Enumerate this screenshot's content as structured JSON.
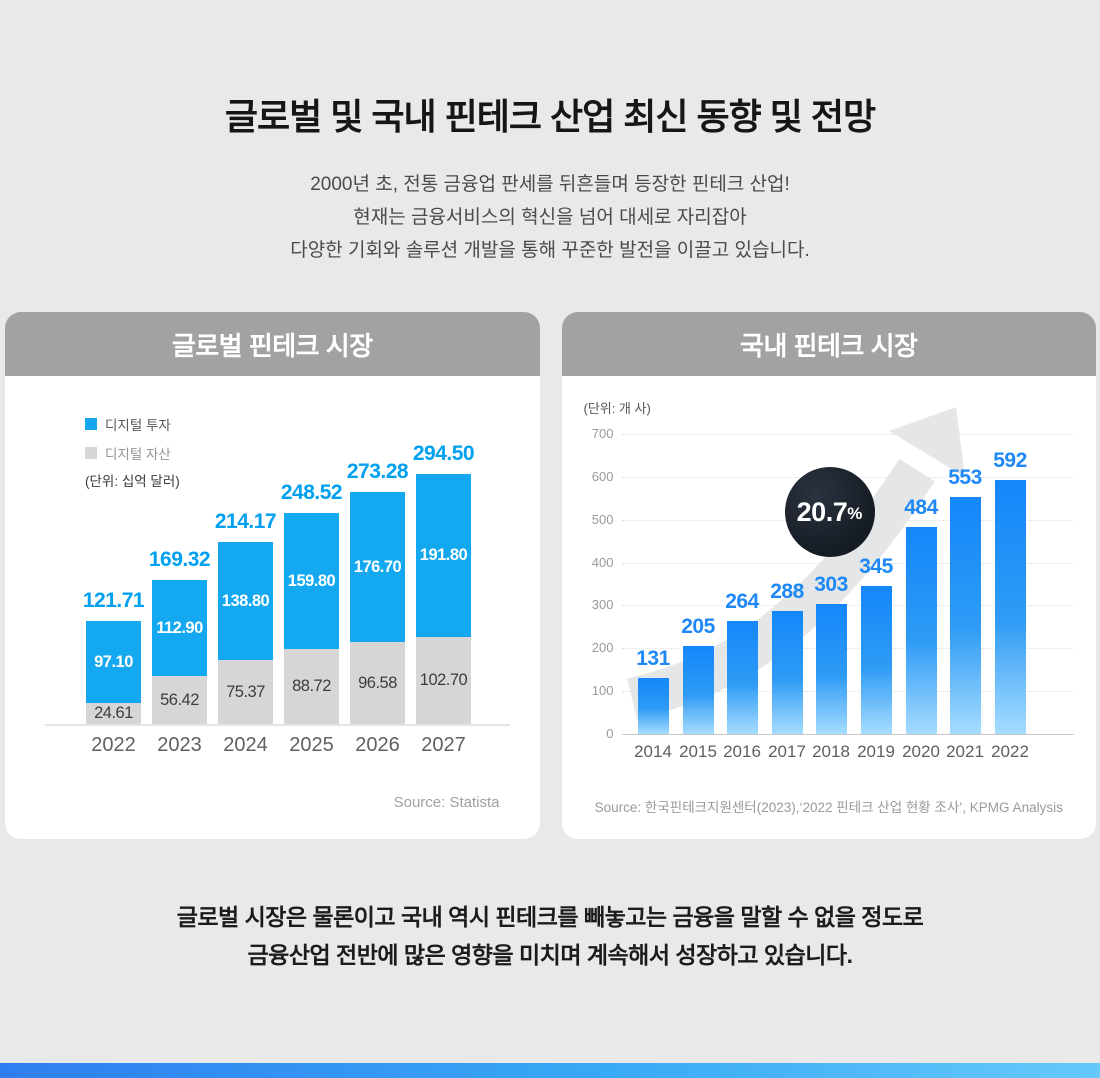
{
  "page": {
    "title": "글로벌 및 국내 핀테크 산업 최신 동향 및 전망",
    "subtitle_lines": [
      "2000년 초, 전통 금융업 판세를 뒤흔들며 등장한 핀테크 산업!",
      "현재는 금융서비스의 혁신을 넘어 대세로 자리잡아",
      "다양한 기회와 솔루션 개발을 통해 꾸준한 발전을 이끌고 있습니다."
    ],
    "footer_lines": [
      "글로벌 시장은 물론이고 국내 역시 핀테크를 빼놓고는 금융을 말할 수 없을 정도로",
      "금융산업 전반에 많은 영향을 미치며 계속해서 성장하고 있습니다."
    ]
  },
  "colors": {
    "background": "#e9e9e9",
    "card_header": "#a2a2a2",
    "global_invest_blue": "#14a8f1",
    "global_asset_gray": "#d6d6d6",
    "global_total_label": "#00a0f0",
    "domestic_bar_top": "#1487fa",
    "domestic_bar_bottom": "#a6dcff",
    "domestic_value_label": "#1e88f7",
    "badge_dark": "#161c24",
    "arrow_gray": "#e5e6e8",
    "bottom_bar_gradient": [
      "#2f7ef0",
      "#66c9fa"
    ]
  },
  "global_card": {
    "header": "글로벌 핀테크 시장",
    "legend": [
      {
        "label": "디지털 투자",
        "color": "#14a8f1"
      },
      {
        "label": "디지털 자산",
        "color": "#d6d6d6"
      }
    ],
    "unit": "(단위: 십억 달러)",
    "source": "Source: Statista"
  },
  "domestic_card": {
    "header": "국내 핀테크 시장",
    "unit": "(단위: 개 사)",
    "growth_badge": {
      "value": "20.7",
      "suffix": "%"
    },
    "source": "Source: 한국핀테크지원센터(2023),‘2022 핀테크 산업 현황 조사’, KPMG Analysis"
  },
  "chart_data": [
    {
      "type": "bar",
      "stacked": true,
      "title": "글로벌 핀테크 시장",
      "unit": "십억 달러",
      "legend_position": "top-left",
      "grid": false,
      "categories": [
        "2022",
        "2023",
        "2024",
        "2025",
        "2026",
        "2027"
      ],
      "series": [
        {
          "name": "디지털 자산",
          "color": "#d6d6d6",
          "values": [
            24.61,
            56.42,
            75.37,
            88.72,
            96.58,
            102.7
          ],
          "value_labels": [
            "24.61",
            "56.42",
            "75.37",
            "88.72",
            "96.58",
            "102.70"
          ]
        },
        {
          "name": "디지털 투자",
          "color": "#14a8f1",
          "values": [
            97.1,
            112.9,
            138.8,
            159.8,
            176.7,
            191.8
          ],
          "value_labels": [
            "97.10",
            "112.90",
            "138.80",
            "159.80",
            "176.70",
            "191.80"
          ]
        }
      ],
      "totals": [
        121.71,
        169.32,
        214.17,
        248.52,
        273.28,
        294.5
      ],
      "total_labels": [
        "121.71",
        "169.32",
        "214.17",
        "248.52",
        "273.28",
        "294.50"
      ],
      "ylim": [
        0,
        300
      ],
      "source": "Statista"
    },
    {
      "type": "bar",
      "stacked": false,
      "title": "국내 핀테크 시장",
      "unit": "개 사",
      "grid": "horizontal-dotted",
      "categories": [
        "2014",
        "2015",
        "2016",
        "2017",
        "2018",
        "2019",
        "2020",
        "2021",
        "2022"
      ],
      "values": [
        131,
        205,
        264,
        288,
        303,
        345,
        484,
        553,
        592
      ],
      "ylim": [
        0,
        700
      ],
      "yticks": [
        0,
        100,
        200,
        300,
        400,
        500,
        600,
        700
      ],
      "annotation": "20.7%",
      "source": "한국핀테크지원센터(2023),‘2022 핀테크 산업 현황 조사’, KPMG Analysis"
    }
  ]
}
